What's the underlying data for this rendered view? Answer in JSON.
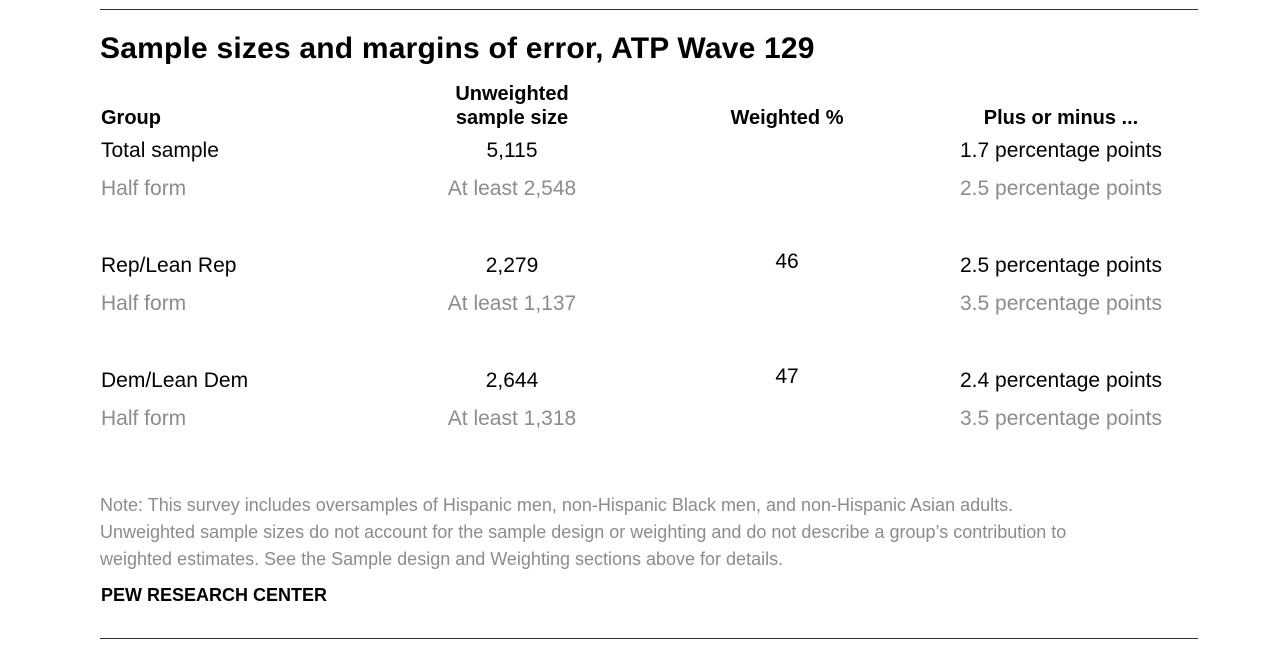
{
  "title": "Sample sizes and margins of error, ATP Wave 129",
  "headers": {
    "group": "Group",
    "unweighted_line1": "Unweighted",
    "unweighted_line2": "sample size",
    "weighted": "Weighted %",
    "plus_minus": "Plus or minus ..."
  },
  "rows": [
    {
      "group": "Total sample",
      "size": "5,115",
      "weighted": "",
      "moe": "1.7 percentage points"
    },
    {
      "group": "Half form",
      "size": "At least 2,548",
      "weighted": "",
      "moe": "2.5 percentage points"
    },
    {
      "group": "Rep/Lean Rep",
      "size": "2,279",
      "weighted": "46",
      "moe": "2.5 percentage points"
    },
    {
      "group": "Half form",
      "size": "At least 1,137",
      "weighted": "",
      "moe": "3.5 percentage points"
    },
    {
      "group": "Dem/Lean Dem",
      "size": "2,644",
      "weighted": "47",
      "moe": "2.4 percentage points"
    },
    {
      "group": "Half form",
      "size": "At least 1,318",
      "weighted": "",
      "moe": "3.5 percentage points"
    }
  ],
  "note": {
    "line1": "Note: This survey includes oversamples of Hispanic men, non-Hispanic Black men, and non-Hispanic Asian adults.",
    "line2": "Unweighted sample sizes do not account for the sample design or weighting and do not describe a group’s contribution to",
    "line3": "weighted estimates. See the Sample design and Weighting sections above for details."
  },
  "source": "PEW RESEARCH CENTER"
}
